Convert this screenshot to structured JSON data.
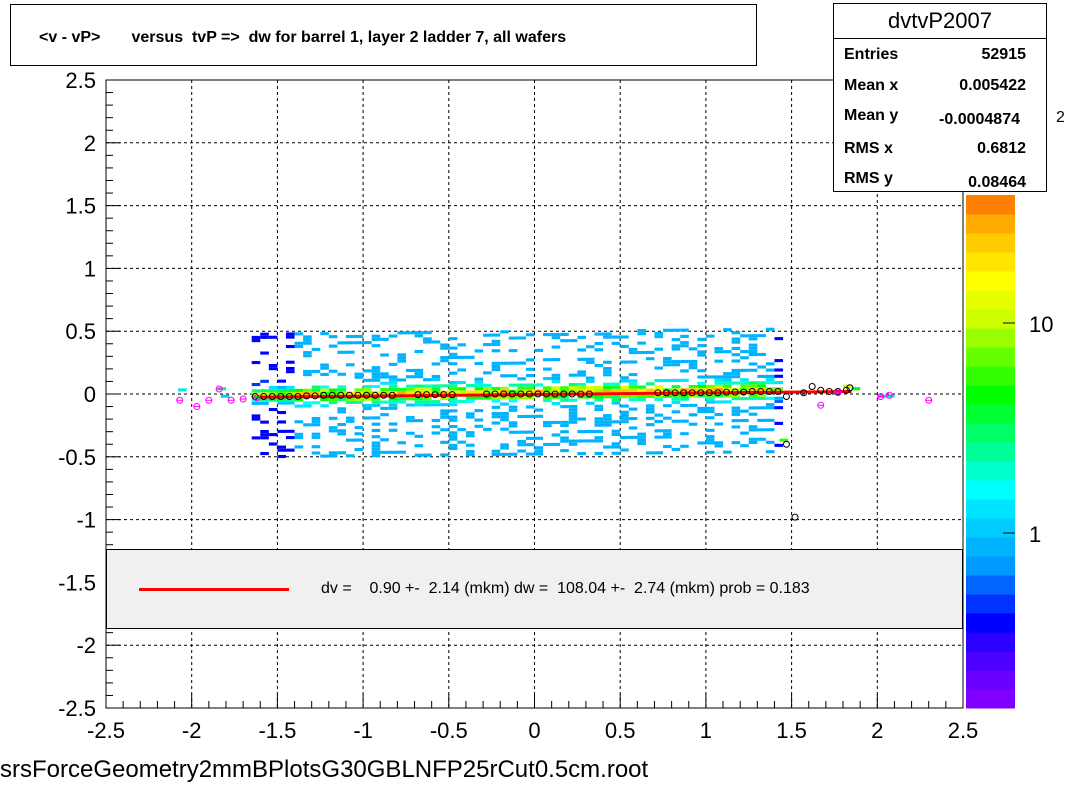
{
  "title": "<v - vP>       versus  tvP =>  dw for barrel 1, layer 2 ladder 7, all wafers",
  "footer": "srsForceGeometry2mmBPlotsG30GBLNFP25rCut0.5cm.root",
  "stats": {
    "name": "dvtvP2007",
    "rows": [
      {
        "label": "Entries",
        "value": "52915"
      },
      {
        "label": "Mean x",
        "value": "0.005422"
      },
      {
        "label": "Mean y",
        "value": "-0.0004874"
      },
      {
        "label": "RMS x",
        "value": "0.6812"
      },
      {
        "label": "RMS y",
        "value": "0.08464"
      }
    ]
  },
  "legend": {
    "text": "dv =    0.90 +-  2.14 (mkm) dw =  108.04 +-  2.74 (mkm) prob = 0.183",
    "line_color": "#ff0000"
  },
  "chart_data": {
    "type": "heatmap",
    "xlim": [
      -2.5,
      2.5
    ],
    "ylim": [
      -2.5,
      2.5
    ],
    "xticks": [
      "-2.5",
      "-2",
      "-1.5",
      "-1",
      "-0.5",
      "0",
      "0.5",
      "1",
      "1.5",
      "2",
      "2.5"
    ],
    "yticks": [
      "-2.5",
      "-2",
      "-1.5",
      "-1",
      "-0.5",
      "0",
      "0.5",
      "1",
      "1.5",
      "2",
      "2.5"
    ],
    "grid": true,
    "z_scale": "log",
    "z_ticks": [
      "1",
      "10"
    ],
    "z_exponent_label": "2",
    "palette": [
      "#7f00ff",
      "#6a00ff",
      "#4c00ff",
      "#2a00ff",
      "#0000ff",
      "#0033ff",
      "#0066ff",
      "#0099ff",
      "#00b3ff",
      "#00ccff",
      "#00e5ff",
      "#00ffff",
      "#00ffcc",
      "#00ff99",
      "#00ff66",
      "#00ff33",
      "#00ff00",
      "#33ff00",
      "#66ff00",
      "#99ff00",
      "#ccff00",
      "#e6ff00",
      "#ffff00",
      "#ffe600",
      "#ffcc00",
      "#ffaa00",
      "#ff8000"
    ],
    "points_black": [
      [
        -1.63,
        -0.02
      ],
      [
        -1.58,
        -0.02
      ],
      [
        -1.53,
        -0.02
      ],
      [
        -1.48,
        -0.02
      ],
      [
        -1.43,
        -0.02
      ],
      [
        -1.38,
        -0.02
      ],
      [
        -1.33,
        -0.015
      ],
      [
        -1.28,
        -0.015
      ],
      [
        -1.23,
        -0.01
      ],
      [
        -1.18,
        -0.01
      ],
      [
        -1.13,
        -0.01
      ],
      [
        -1.08,
        -0.01
      ],
      [
        -1.03,
        -0.01
      ],
      [
        -0.98,
        -0.01
      ],
      [
        -0.93,
        -0.01
      ],
      [
        -0.88,
        -0.01
      ],
      [
        -0.83,
        -0.01
      ],
      [
        -0.68,
        -0.005
      ],
      [
        -0.63,
        -0.005
      ],
      [
        -0.58,
        -0.005
      ],
      [
        -0.53,
        -0.005
      ],
      [
        -0.48,
        -0.005
      ],
      [
        -0.28,
        0.0
      ],
      [
        -0.23,
        0.0
      ],
      [
        -0.18,
        0.0
      ],
      [
        -0.13,
        0.0
      ],
      [
        -0.08,
        0.0
      ],
      [
        -0.03,
        0.0
      ],
      [
        0.02,
        0.0
      ],
      [
        0.07,
        0.0
      ],
      [
        0.12,
        0.0
      ],
      [
        0.17,
        0.0
      ],
      [
        0.22,
        0.0
      ],
      [
        0.27,
        0.0
      ],
      [
        0.32,
        0.0
      ],
      [
        0.72,
        0.01
      ],
      [
        0.77,
        0.01
      ],
      [
        0.82,
        0.01
      ],
      [
        0.87,
        0.01
      ],
      [
        0.92,
        0.01
      ],
      [
        0.97,
        0.01
      ],
      [
        1.02,
        0.01
      ],
      [
        1.07,
        0.01
      ],
      [
        1.12,
        0.015
      ],
      [
        1.17,
        0.015
      ],
      [
        1.22,
        0.015
      ],
      [
        1.27,
        0.02
      ],
      [
        1.32,
        0.02
      ],
      [
        1.37,
        0.02
      ],
      [
        1.42,
        0.02
      ],
      [
        1.47,
        -0.02
      ],
      [
        1.57,
        0.01
      ],
      [
        1.62,
        0.06
      ],
      [
        1.67,
        0.03
      ],
      [
        1.72,
        0.02
      ],
      [
        1.77,
        0.02
      ],
      [
        1.82,
        0.03
      ],
      [
        1.84,
        0.05
      ],
      [
        1.47,
        -0.4
      ],
      [
        1.52,
        -0.98
      ]
    ],
    "points_magenta": [
      [
        -2.07,
        -0.05
      ],
      [
        -1.97,
        -0.1
      ],
      [
        -1.9,
        -0.05
      ],
      [
        -1.84,
        0.04
      ],
      [
        -1.77,
        -0.05
      ],
      [
        -1.7,
        -0.04
      ],
      [
        -1.62,
        -0.03
      ],
      [
        1.67,
        -0.09
      ],
      [
        1.77,
        0.01
      ],
      [
        2.02,
        -0.02
      ],
      [
        2.07,
        -0.01
      ],
      [
        2.3,
        -0.05
      ]
    ],
    "fit_line": {
      "x": [
        -1.6,
        1.85
      ],
      "y": [
        -0.025,
        0.02
      ]
    }
  }
}
